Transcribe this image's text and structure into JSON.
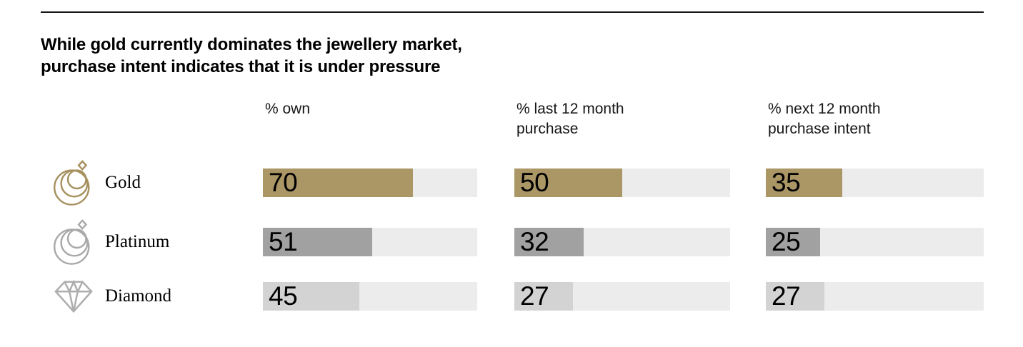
{
  "title": {
    "line1": "While gold currently dominates the jewellery market,",
    "line2": "purchase intent indicates that it is under pressure"
  },
  "columns": [
    {
      "line1": "% own",
      "line2": ""
    },
    {
      "line1": "% last 12 month",
      "line2": "purchase"
    },
    {
      "line1": "% next 12 month",
      "line2": "purchase intent"
    }
  ],
  "rows": [
    {
      "label": "Gold",
      "icon": "gold-pendant-icon",
      "color": "#ab9666",
      "values": [
        70,
        50,
        35
      ]
    },
    {
      "label": "Platinum",
      "icon": "platinum-pendant-icon",
      "color": "#a1a1a1",
      "values": [
        51,
        32,
        25
      ]
    },
    {
      "label": "Diamond",
      "icon": "diamond-gem-icon",
      "color": "#d3d3d3",
      "values": [
        45,
        27,
        27
      ]
    }
  ],
  "colors": {
    "track": "#ececec",
    "gold_bar": "#ab9666",
    "platinum_bar": "#a1a1a1",
    "diamond_bar": "#d3d3d3",
    "gold_icon": "#a6915f",
    "gray_icon": "#a9a9a9",
    "rule": "#161616",
    "text": "#000000"
  },
  "chart_data": {
    "type": "bar",
    "orientation": "horizontal",
    "categories": [
      "Gold",
      "Platinum",
      "Diamond"
    ],
    "series": [
      {
        "name": "% own",
        "values": [
          70,
          51,
          45
        ]
      },
      {
        "name": "% last 12 month purchase",
        "values": [
          50,
          32,
          27
        ]
      },
      {
        "name": "% next 12 month purchase intent",
        "values": [
          35,
          25,
          27
        ]
      }
    ],
    "title": "While gold currently dominates the jewellery market, purchase intent indicates that it is under pressure",
    "xlabel": "",
    "ylabel": "",
    "xlim": [
      0,
      100
    ],
    "grid": false,
    "legend_position": "column-headers",
    "bar_colors": {
      "Gold": "#ab9666",
      "Platinum": "#a1a1a1",
      "Diamond": "#d3d3d3"
    },
    "value_labels": "inside-left"
  }
}
